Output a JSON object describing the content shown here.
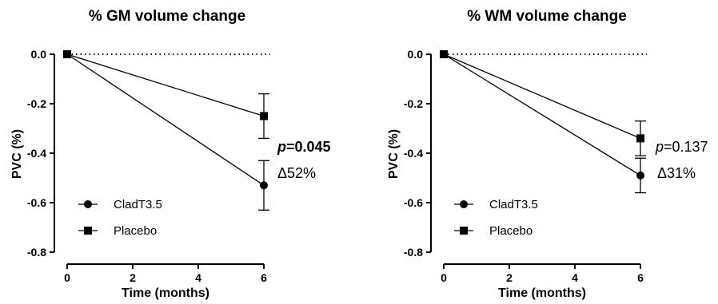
{
  "chart_data": [
    {
      "type": "line",
      "title": "% GM volume change",
      "xlabel": "Time (months)",
      "ylabel": "PVC (%)",
      "xlim": [
        0,
        6
      ],
      "ylim": [
        -0.8,
        0
      ],
      "xticks": [
        "0",
        "2",
        "4",
        "6"
      ],
      "yticks": [
        "0.0",
        "-0.2",
        "-0.4",
        "-0.6",
        "-0.8"
      ],
      "reference_line": 0,
      "series": [
        {
          "name": "CladT3.5",
          "marker": "circle",
          "x": [
            0,
            6
          ],
          "y": [
            0,
            -0.53
          ],
          "err": [
            0,
            0.1
          ]
        },
        {
          "name": "Placebo",
          "marker": "square",
          "x": [
            0,
            6
          ],
          "y": [
            0,
            -0.25
          ],
          "err": [
            0,
            0.09
          ]
        }
      ],
      "annotation": {
        "p_label": "p",
        "p_value": "=0.045",
        "bold": true,
        "delta": "Δ52%"
      },
      "legend": "bottom-left"
    },
    {
      "type": "line",
      "title": "% WM volume change",
      "xlabel": "Time (months)",
      "ylabel": "PVC (%)",
      "xlim": [
        0,
        6
      ],
      "ylim": [
        -0.8,
        0
      ],
      "xticks": [
        "0",
        "2",
        "4",
        "6"
      ],
      "yticks": [
        "0.0",
        "-0.2",
        "-0.4",
        "-0.6",
        "-0.8"
      ],
      "reference_line": 0,
      "series": [
        {
          "name": "CladT3.5",
          "marker": "circle",
          "x": [
            0,
            6
          ],
          "y": [
            0,
            -0.49
          ],
          "err": [
            0,
            0.07
          ]
        },
        {
          "name": "Placebo",
          "marker": "square",
          "x": [
            0,
            6
          ],
          "y": [
            0,
            -0.34
          ],
          "err": [
            0,
            0.07
          ]
        }
      ],
      "annotation": {
        "p_label": "p",
        "p_value": "=0.137",
        "bold": false,
        "delta": "Δ31%"
      },
      "legend": "bottom-left"
    }
  ]
}
